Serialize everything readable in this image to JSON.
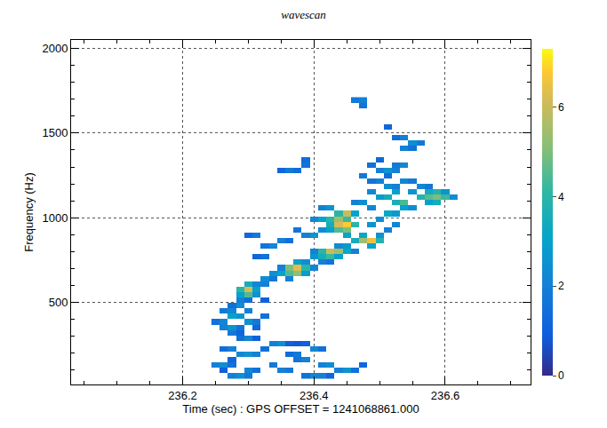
{
  "chart_data": {
    "type": "heatmap",
    "title": "wavescan",
    "x_label": "Time (sec) : GPS OFFSET = 1241068861.000",
    "y_label": "Frequency (Hz)",
    "xlim": [
      236.03,
      236.73
    ],
    "ylim": [
      16,
      2050
    ],
    "xticks": [
      236.2,
      236.4,
      236.6
    ],
    "yticks": [
      500,
      1000,
      1500,
      2000
    ],
    "grid": true,
    "zlim": [
      0,
      7.3
    ],
    "zticks": [
      0,
      2,
      4,
      6
    ],
    "x": [
      236.25,
      236.2625,
      236.275,
      236.2875,
      236.3,
      236.3125,
      236.325,
      236.3375,
      236.35,
      236.3625,
      236.375,
      236.3875,
      236.4,
      236.4125,
      236.425,
      236.4375,
      236.45,
      236.4625,
      236.475,
      236.4875,
      236.5,
      236.5125,
      236.525,
      236.5375,
      236.55,
      236.5625,
      236.575,
      236.5875,
      236.6,
      236.6125
    ],
    "y": [
      64,
      96,
      128,
      160,
      192,
      224,
      256,
      288,
      320,
      352,
      384,
      416,
      448,
      480,
      512,
      544,
      576,
      608,
      640,
      672,
      704,
      736,
      768,
      800,
      832,
      864,
      896,
      928,
      960,
      992,
      1024,
      1056,
      1088,
      1120,
      1152,
      1184,
      1216,
      1248,
      1280,
      1312,
      1344,
      1376,
      1408,
      1440,
      1472,
      1504,
      1536,
      1568,
      1600,
      1632,
      1664,
      1696
    ],
    "cells": [
      [
        236.275,
        64,
        2.0
      ],
      [
        236.2875,
        64,
        2.5
      ],
      [
        236.3,
        64,
        1.8
      ],
      [
        236.3875,
        64,
        1.5
      ],
      [
        236.4,
        64,
        2.2
      ],
      [
        236.4125,
        64,
        2.0
      ],
      [
        236.425,
        64,
        1.2
      ],
      [
        236.2625,
        96,
        1.0
      ],
      [
        236.3,
        96,
        2.2
      ],
      [
        236.3125,
        96,
        1.5
      ],
      [
        236.35,
        96,
        2.0
      ],
      [
        236.3625,
        96,
        1.8
      ],
      [
        236.4375,
        96,
        2.0
      ],
      [
        236.45,
        96,
        2.6
      ],
      [
        236.4625,
        96,
        1.5
      ],
      [
        236.25,
        128,
        2.0
      ],
      [
        236.2625,
        128,
        2.4
      ],
      [
        236.275,
        128,
        1.5
      ],
      [
        236.3375,
        128,
        1.8
      ],
      [
        236.4125,
        128,
        2.0
      ],
      [
        236.425,
        128,
        2.4
      ],
      [
        236.475,
        128,
        1.2
      ],
      [
        236.275,
        160,
        1.2
      ],
      [
        236.375,
        160,
        1.6
      ],
      [
        236.3875,
        160,
        2.0
      ],
      [
        236.2875,
        192,
        2.2
      ],
      [
        236.3,
        192,
        2.6
      ],
      [
        236.3125,
        192,
        2.0
      ],
      [
        236.3625,
        192,
        1.4
      ],
      [
        236.375,
        192,
        1.8
      ],
      [
        236.2625,
        224,
        1.4
      ],
      [
        236.275,
        224,
        2.0
      ],
      [
        236.325,
        224,
        1.5
      ],
      [
        236.4,
        224,
        2.2
      ],
      [
        236.4125,
        224,
        1.5
      ],
      [
        236.3375,
        256,
        2.0
      ],
      [
        236.35,
        256,
        2.4
      ],
      [
        236.3625,
        256,
        1.0
      ],
      [
        236.375,
        256,
        0.8
      ],
      [
        236.3875,
        256,
        1.0
      ],
      [
        236.2875,
        288,
        1.5
      ],
      [
        236.3,
        288,
        2.2
      ],
      [
        236.3125,
        288,
        1.0
      ],
      [
        236.275,
        320,
        1.8
      ],
      [
        236.2875,
        320,
        1.2
      ],
      [
        236.2625,
        352,
        2.0
      ],
      [
        236.275,
        352,
        2.6
      ],
      [
        236.2875,
        352,
        1.6
      ],
      [
        236.3125,
        352,
        1.2
      ],
      [
        236.25,
        384,
        1.5
      ],
      [
        236.2625,
        384,
        2.2
      ],
      [
        236.3,
        384,
        2.5
      ],
      [
        236.3125,
        384,
        1.8
      ],
      [
        236.275,
        416,
        3.0
      ],
      [
        236.2875,
        416,
        2.6
      ],
      [
        236.325,
        416,
        1.5
      ],
      [
        236.2625,
        448,
        1.8
      ],
      [
        236.275,
        448,
        2.2
      ],
      [
        236.3,
        448,
        2.0
      ],
      [
        236.275,
        480,
        1.5
      ],
      [
        236.2875,
        480,
        2.4
      ],
      [
        236.2875,
        512,
        2.0
      ],
      [
        236.3,
        512,
        1.4
      ],
      [
        236.325,
        512,
        1.0
      ],
      [
        236.2875,
        544,
        3.0
      ],
      [
        236.3,
        544,
        4.5
      ],
      [
        236.3125,
        544,
        2.5
      ],
      [
        236.2875,
        576,
        4.0
      ],
      [
        236.3,
        576,
        6.2
      ],
      [
        236.3125,
        576,
        3.0
      ],
      [
        236.3,
        608,
        3.5
      ],
      [
        236.3125,
        608,
        2.2
      ],
      [
        236.325,
        608,
        2.0
      ],
      [
        236.325,
        640,
        2.4
      ],
      [
        236.3375,
        640,
        1.8
      ],
      [
        236.3625,
        640,
        2.0
      ],
      [
        236.3375,
        672,
        2.5
      ],
      [
        236.35,
        672,
        3.0
      ],
      [
        236.3625,
        672,
        4.5
      ],
      [
        236.375,
        672,
        5.2
      ],
      [
        236.3875,
        672,
        2.8
      ],
      [
        236.35,
        704,
        2.0
      ],
      [
        236.3625,
        704,
        5.0
      ],
      [
        236.375,
        704,
        6.3
      ],
      [
        236.3875,
        704,
        4.0
      ],
      [
        236.4,
        704,
        2.2
      ],
      [
        236.375,
        736,
        3.0
      ],
      [
        236.3875,
        736,
        2.4
      ],
      [
        236.4125,
        736,
        2.0
      ],
      [
        236.425,
        736,
        1.6
      ],
      [
        236.4,
        768,
        2.6
      ],
      [
        236.4125,
        768,
        3.5
      ],
      [
        236.425,
        768,
        4.2
      ],
      [
        236.4375,
        768,
        3.0
      ],
      [
        236.3125,
        768,
        1.2
      ],
      [
        236.325,
        768,
        1.5
      ],
      [
        236.4,
        800,
        2.0
      ],
      [
        236.4125,
        800,
        4.0
      ],
      [
        236.425,
        800,
        6.0
      ],
      [
        236.4375,
        800,
        5.5
      ],
      [
        236.45,
        800,
        3.2
      ],
      [
        236.4625,
        800,
        2.0
      ],
      [
        236.325,
        832,
        1.6
      ],
      [
        236.3375,
        832,
        2.2
      ],
      [
        236.4375,
        832,
        2.4
      ],
      [
        236.45,
        832,
        2.8
      ],
      [
        236.4875,
        832,
        3.0
      ],
      [
        236.35,
        864,
        2.0
      ],
      [
        236.3625,
        864,
        1.5
      ],
      [
        236.4625,
        864,
        3.5
      ],
      [
        236.475,
        864,
        5.5
      ],
      [
        236.4875,
        864,
        6.5
      ],
      [
        236.5,
        864,
        3.8
      ],
      [
        236.3,
        896,
        1.2
      ],
      [
        236.3125,
        896,
        1.8
      ],
      [
        236.3875,
        896,
        2.0
      ],
      [
        236.4,
        896,
        2.6
      ],
      [
        236.45,
        896,
        3.0
      ],
      [
        236.475,
        896,
        3.2
      ],
      [
        236.5,
        896,
        2.5
      ],
      [
        236.375,
        928,
        1.6
      ],
      [
        236.4125,
        928,
        2.4
      ],
      [
        236.425,
        928,
        3.0
      ],
      [
        236.4375,
        928,
        4.5
      ],
      [
        236.45,
        928,
        5.0
      ],
      [
        236.5125,
        928,
        2.0
      ],
      [
        236.425,
        960,
        3.5
      ],
      [
        236.4375,
        960,
        6.2
      ],
      [
        236.45,
        960,
        6.8
      ],
      [
        236.4625,
        960,
        4.0
      ],
      [
        236.4875,
        960,
        2.6
      ],
      [
        236.525,
        960,
        2.2
      ],
      [
        236.4,
        992,
        2.2
      ],
      [
        236.4125,
        992,
        3.0
      ],
      [
        236.425,
        992,
        4.0
      ],
      [
        236.4375,
        992,
        5.5
      ],
      [
        236.45,
        992,
        4.2
      ],
      [
        236.5,
        992,
        2.4
      ],
      [
        236.4375,
        1024,
        4.0
      ],
      [
        236.45,
        1024,
        6.0
      ],
      [
        236.4625,
        1024,
        3.0
      ],
      [
        236.5125,
        1024,
        3.2
      ],
      [
        236.525,
        1024,
        2.8
      ],
      [
        236.4125,
        1056,
        2.0
      ],
      [
        236.425,
        1056,
        2.6
      ],
      [
        236.4875,
        1056,
        2.2
      ],
      [
        236.5375,
        1056,
        3.0
      ],
      [
        236.55,
        1056,
        2.4
      ],
      [
        236.4625,
        1088,
        2.0
      ],
      [
        236.475,
        1088,
        2.5
      ],
      [
        236.525,
        1088,
        3.6
      ],
      [
        236.5375,
        1088,
        4.4
      ],
      [
        236.575,
        1088,
        3.0
      ],
      [
        236.5875,
        1088,
        3.5
      ],
      [
        236.5,
        1120,
        2.8
      ],
      [
        236.5125,
        1120,
        3.5
      ],
      [
        236.5625,
        1120,
        3.8
      ],
      [
        236.575,
        1120,
        4.6
      ],
      [
        236.5875,
        1120,
        5.0
      ],
      [
        236.6,
        1120,
        4.2
      ],
      [
        236.6125,
        1120,
        2.4
      ],
      [
        236.4875,
        1152,
        2.2
      ],
      [
        236.525,
        1152,
        3.0
      ],
      [
        236.55,
        1152,
        2.6
      ],
      [
        236.575,
        1152,
        3.4
      ],
      [
        236.5875,
        1152,
        3.8
      ],
      [
        236.6,
        1152,
        2.6
      ],
      [
        236.5125,
        1184,
        2.4
      ],
      [
        236.525,
        1184,
        2.0
      ],
      [
        236.5625,
        1184,
        2.2
      ],
      [
        236.575,
        1184,
        1.8
      ],
      [
        236.4875,
        1216,
        1.6
      ],
      [
        236.5,
        1216,
        2.0
      ],
      [
        236.5375,
        1216,
        2.2
      ],
      [
        236.55,
        1216,
        1.8
      ],
      [
        236.475,
        1248,
        1.8
      ],
      [
        236.5125,
        1248,
        1.4
      ],
      [
        236.35,
        1280,
        1.2
      ],
      [
        236.3625,
        1280,
        1.8
      ],
      [
        236.375,
        1280,
        1.4
      ],
      [
        236.5,
        1280,
        2.0
      ],
      [
        236.5125,
        1280,
        2.6
      ],
      [
        236.525,
        1280,
        2.0
      ],
      [
        236.3875,
        1312,
        1.6
      ],
      [
        236.4875,
        1312,
        1.5
      ],
      [
        236.525,
        1312,
        1.8
      ],
      [
        236.5375,
        1312,
        2.2
      ],
      [
        236.3875,
        1344,
        1.4
      ],
      [
        236.5,
        1344,
        1.2
      ],
      [
        236.5375,
        1408,
        2.0
      ],
      [
        236.55,
        1408,
        1.6
      ],
      [
        236.55,
        1440,
        2.4
      ],
      [
        236.5625,
        1440,
        1.8
      ],
      [
        236.525,
        1472,
        1.4
      ],
      [
        236.5375,
        1472,
        2.0
      ],
      [
        236.5125,
        1536,
        1.2
      ],
      [
        236.475,
        1664,
        1.6
      ],
      [
        236.4625,
        1696,
        1.8
      ],
      [
        236.475,
        1696,
        2.0
      ]
    ]
  }
}
